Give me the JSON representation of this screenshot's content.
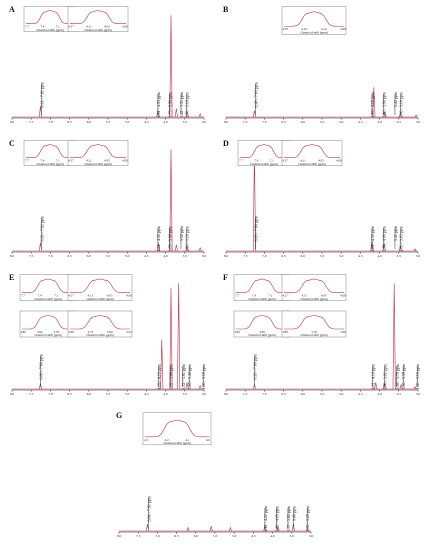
{
  "chart_data": [
    {
      "type": "line",
      "panel": "A",
      "axis": {
        "xlim": [
          8.0,
          3.0
        ],
        "ticks": [
          8.0,
          7.5,
          7.0,
          6.5,
          6.0,
          5.5,
          5.0,
          4.5,
          4.0,
          3.5,
          3.0
        ]
      },
      "peaks": [
        {
          "x": 7.26,
          "h": 0.1
        },
        {
          "x": 4.2,
          "h": 0.06
        },
        {
          "x": 3.86,
          "h": 0.96
        },
        {
          "x": 3.72,
          "h": 0.08
        },
        {
          "x": 3.44,
          "h": 0.05
        },
        {
          "x": 3.1,
          "h": 0.03
        }
      ],
      "annotations": [
        "6.91 - 7.61 ppm",
        "4.31 - 4.03 ppm",
        "3.75 - 3.90 ppm",
        "3.42 - 3.51 ppm",
        "2.70 - 3.10 ppm"
      ],
      "insets": [
        {
          "xlabel": "Chemical shift (ppm)",
          "ticks": [
            "7.7",
            "7.4",
            "7.1",
            "6.8"
          ]
        },
        {
          "xlabel": "Chemical shift (ppm)",
          "ticks": [
            "4.17",
            "4.11",
            "4.05",
            "4.00"
          ]
        }
      ]
    },
    {
      "type": "line",
      "panel": "B",
      "axis": {
        "xlim": [
          8.0,
          3.0
        ],
        "ticks": [
          8.0,
          7.5,
          7.0,
          6.5,
          6.0,
          5.5,
          5.0,
          4.5,
          4.0,
          3.5,
          3.0
        ]
      },
      "peaks": [
        {
          "x": 7.26,
          "h": 0.06
        },
        {
          "x": 4.15,
          "h": 0.28
        },
        {
          "x": 3.86,
          "h": 0.05
        },
        {
          "x": 3.46,
          "h": 0.03
        },
        {
          "x": 3.05,
          "h": 0.02
        }
      ],
      "annotations": [
        "6.98 - 7.63 ppm",
        "4.10 - 4.18 ppm",
        "3.80 - 3.90 ppm",
        "3.42 ppm",
        "2.80 - 3.10 ppm"
      ],
      "insets": [
        {
          "xlabel": "Chemical shift (ppm)",
          "ticks": [
            "4.20",
            "4.16",
            "4.12",
            "4.08"
          ]
        }
      ]
    },
    {
      "type": "line",
      "panel": "C",
      "axis": {
        "xlim": [
          8.0,
          3.0
        ],
        "ticks": [
          8.0,
          7.5,
          7.0,
          6.5,
          6.0,
          5.5,
          5.0,
          4.5,
          4.0,
          3.5,
          3.0
        ]
      },
      "peaks": [
        {
          "x": 7.26,
          "h": 0.08
        },
        {
          "x": 4.18,
          "h": 0.07
        },
        {
          "x": 3.86,
          "h": 0.96
        },
        {
          "x": 3.72,
          "h": 0.06
        },
        {
          "x": 3.44,
          "h": 0.04
        },
        {
          "x": 3.1,
          "h": 0.03
        }
      ],
      "annotations": [
        "6.93 - 7.62 ppm",
        "4.01 - 4.32 ppm",
        "3.85 - 3.90 ppm",
        "3.52 ppm",
        "2.80 - 3.10 ppm"
      ],
      "insets": [
        {
          "xlabel": "Chemical shift (ppm)",
          "ticks": [
            "7.7",
            "7.4",
            "7.1",
            "6.8"
          ]
        },
        {
          "xlabel": "Chemical shift (ppm)",
          "ticks": [
            "4.17",
            "4.11",
            "4.05",
            "4.00"
          ]
        }
      ]
    },
    {
      "type": "line",
      "panel": "D",
      "axis": {
        "xlim": [
          8.0,
          3.0
        ],
        "ticks": [
          8.0,
          7.5,
          7.0,
          6.5,
          6.0,
          5.5,
          5.0,
          4.5,
          4.0,
          3.5,
          3.0
        ]
      },
      "peaks": [
        {
          "x": 7.26,
          "h": 0.95
        },
        {
          "x": 4.2,
          "h": 0.1
        },
        {
          "x": 3.88,
          "h": 0.07
        },
        {
          "x": 3.46,
          "h": 0.04
        },
        {
          "x": 3.08,
          "h": 0.02
        }
      ],
      "annotations": [
        "6.95 - 7.60 ppm",
        "4.01 - 4.30 ppm",
        "3.70 - 4.00 ppm",
        "3.41 ppm",
        "2.85 - 3.05 ppm"
      ],
      "insets": [
        {
          "xlabel": "Chemical shift (ppm)",
          "ticks": [
            "7.7",
            "7.4",
            "7.1",
            "6.8"
          ]
        },
        {
          "xlabel": "Chemical shift (ppm)",
          "ticks": [
            "4.17",
            "4.11",
            "4.05",
            "4.00"
          ]
        }
      ]
    },
    {
      "type": "line",
      "panel": "E",
      "axis": {
        "xlim": [
          8.0,
          3.0
        ],
        "ticks": [
          8.0,
          7.5,
          7.0,
          6.5,
          6.0,
          5.5,
          5.0,
          4.5,
          4.0,
          3.5,
          3.0
        ]
      },
      "peaks": [
        {
          "x": 7.26,
          "h": 0.05
        },
        {
          "x": 4.1,
          "h": 0.45
        },
        {
          "x": 3.86,
          "h": 0.92
        },
        {
          "x": 3.66,
          "h": 0.96
        },
        {
          "x": 3.44,
          "h": 0.06
        },
        {
          "x": 3.1,
          "h": 0.03
        }
      ],
      "annotations": [
        "6.80 - 7.60 ppm",
        "4.03 - 4.10 ppm",
        "3.82 - 3.90 ppm",
        "3.52 - 3.61 ppm",
        "3.26 - 3.44 ppm",
        "2.80 - 3.10 ppm"
      ],
      "insets": [
        {
          "xlabel": "Chemical shift (ppm)",
          "ticks": [
            "7.7",
            "7.4",
            "7.1",
            "6.8"
          ]
        },
        {
          "xlabel": "Chemical shift (ppm)",
          "ticks": [
            "4.17",
            "4.11",
            "4.05",
            "4.00"
          ]
        },
        {
          "xlabel": "Chemical shift (ppm)",
          "ticks": [
            "3.86",
            "3.82",
            "3.78",
            "3.74"
          ]
        },
        {
          "xlabel": "Chemical shift (ppm)",
          "ticks": [
            "3.90",
            "3.75",
            "3.60",
            "3.45"
          ]
        }
      ]
    },
    {
      "type": "line",
      "panel": "F",
      "axis": {
        "xlim": [
          8.0,
          3.0
        ],
        "ticks": [
          8.0,
          7.5,
          7.0,
          6.5,
          6.0,
          5.5,
          5.0,
          4.5,
          4.0,
          3.5,
          3.0
        ]
      },
      "peaks": [
        {
          "x": 7.26,
          "h": 0.04
        },
        {
          "x": 4.1,
          "h": 0.06
        },
        {
          "x": 3.88,
          "h": 0.05
        },
        {
          "x": 3.62,
          "h": 0.96
        },
        {
          "x": 3.44,
          "h": 0.04
        },
        {
          "x": 3.08,
          "h": 0.02
        }
      ],
      "annotations": [
        "6.95 - 7.60 ppm",
        "4.01 - 4.10 ppm",
        "3.86 - 3.92 ppm",
        "3.56 - 3.70 ppm",
        "3.50 - 3.58 ppm",
        "2.80 - 3.10 ppm"
      ],
      "insets": [
        {
          "xlabel": "Chemical shift (ppm)",
          "ticks": [
            "7.7",
            "7.4",
            "7.1",
            "6.8"
          ]
        },
        {
          "xlabel": "Chemical shift (ppm)",
          "ticks": [
            "4.17",
            "4.11",
            "4.05",
            "4.00"
          ]
        },
        {
          "xlabel": "Chemical shift (ppm)",
          "ticks": [
            "3.90",
            "3.85",
            "3.80"
          ]
        },
        {
          "xlabel": "Chemical shift (ppm)",
          "ticks": [
            "3.80",
            "3.70",
            "3.60"
          ]
        }
      ]
    },
    {
      "type": "line",
      "panel": "G",
      "axis": {
        "xlim": [
          8.0,
          3.0
        ],
        "ticks": [
          8.0,
          7.5,
          7.0,
          6.5,
          6.0,
          5.5,
          5.0,
          4.5,
          4.0,
          3.5,
          3.0
        ]
      },
      "peaks": [
        {
          "x": 7.26,
          "h": 0.06
        },
        {
          "x": 6.2,
          "h": 0.03
        },
        {
          "x": 5.6,
          "h": 0.04
        },
        {
          "x": 5.1,
          "h": 0.03
        },
        {
          "x": 4.2,
          "h": 0.05
        },
        {
          "x": 3.86,
          "h": 0.04
        },
        {
          "x": 3.46,
          "h": 0.06
        },
        {
          "x": 3.1,
          "h": 0.02
        }
      ],
      "annotations": [
        "6.84 - 7.61 ppm",
        "4.12 - 4.22 ppm",
        "3.85 - 4.05 ppm",
        "3.57 - 3.82 ppm",
        "3.40 ppm",
        "2.80 - 3.20 ppm"
      ],
      "insets": [
        {
          "xlabel": "Chemical shift (ppm)",
          "ticks": [
            "4.3",
            "4.2",
            "4.1",
            "4.0"
          ]
        }
      ]
    }
  ]
}
